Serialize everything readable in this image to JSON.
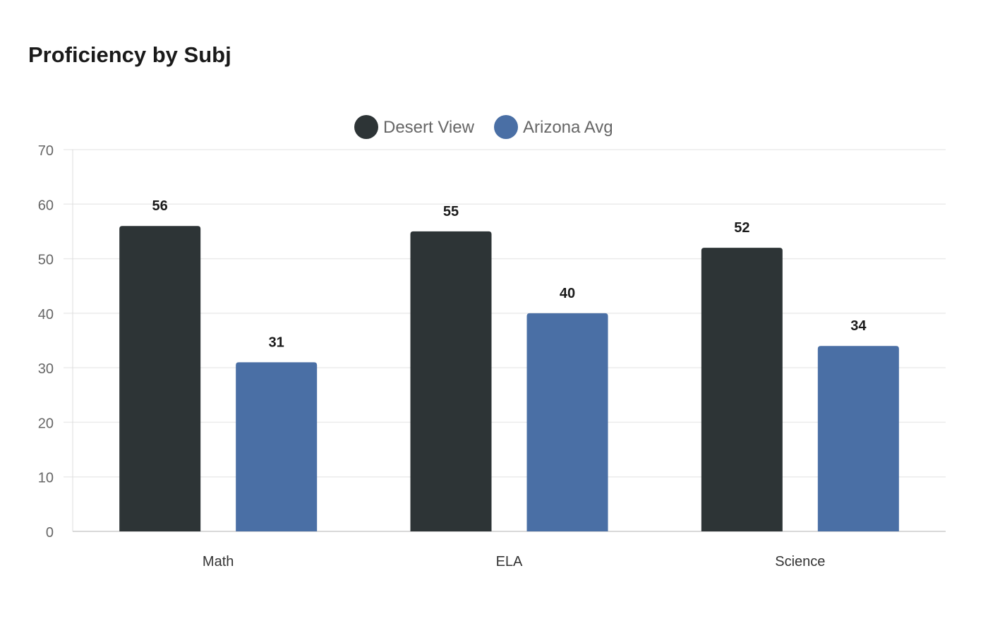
{
  "chart_data": {
    "type": "bar",
    "title": "Proficiency by Subj",
    "categories": [
      "Math",
      "ELA",
      "Science"
    ],
    "series": [
      {
        "name": "Desert View",
        "values": [
          56,
          55,
          52
        ],
        "color": "#2d3436"
      },
      {
        "name": "Arizona Avg",
        "values": [
          31,
          40,
          34
        ],
        "color": "#4a6fa5"
      }
    ],
    "ylim": [
      0,
      70
    ],
    "yticks": [
      0,
      10,
      20,
      30,
      40,
      50,
      60,
      70
    ],
    "grid": true,
    "legend": "top-center",
    "data_labels": true
  }
}
